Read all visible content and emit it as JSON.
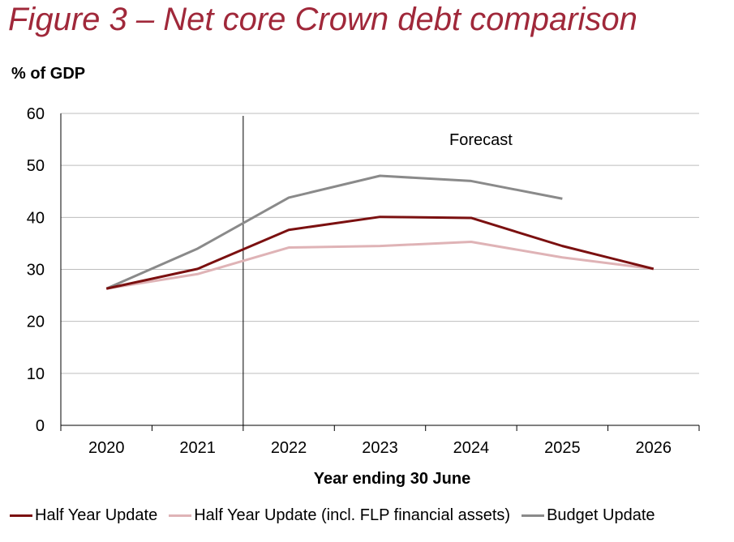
{
  "title": "Figure 3 – Net core Crown debt comparison",
  "colors": {
    "half_year_update": "#7b1010",
    "half_year_update_flp": "#dfb3b6",
    "budget_update": "#8a8a8a",
    "grid": "#bdbdbd",
    "axis": "#000000",
    "title": "#a0283a"
  },
  "chart_data": {
    "type": "line",
    "ylabel": "% of GDP",
    "xlabel": "Year ending 30 June",
    "ylim": [
      0,
      60
    ],
    "yticks": [
      0,
      10,
      20,
      30,
      40,
      50,
      60
    ],
    "categories": [
      "2020",
      "2021",
      "2022",
      "2023",
      "2024",
      "2025",
      "2026"
    ],
    "annotation": "Forecast",
    "grid": true,
    "legend_position": "bottom",
    "series": [
      {
        "name": "Half Year Update",
        "color_key": "half_year_update",
        "values": [
          26.3,
          30.1,
          37.6,
          40.1,
          39.9,
          34.5,
          30.1
        ]
      },
      {
        "name": "Half Year Update (incl. FLP financial assets)",
        "color_key": "half_year_update_flp",
        "values": [
          26.3,
          29.1,
          34.2,
          34.5,
          35.3,
          32.3,
          30.1
        ]
      },
      {
        "name": "Budget Update",
        "color_key": "budget_update",
        "values": [
          26.3,
          34.0,
          43.8,
          48.0,
          47.0,
          43.6,
          null
        ]
      }
    ]
  }
}
